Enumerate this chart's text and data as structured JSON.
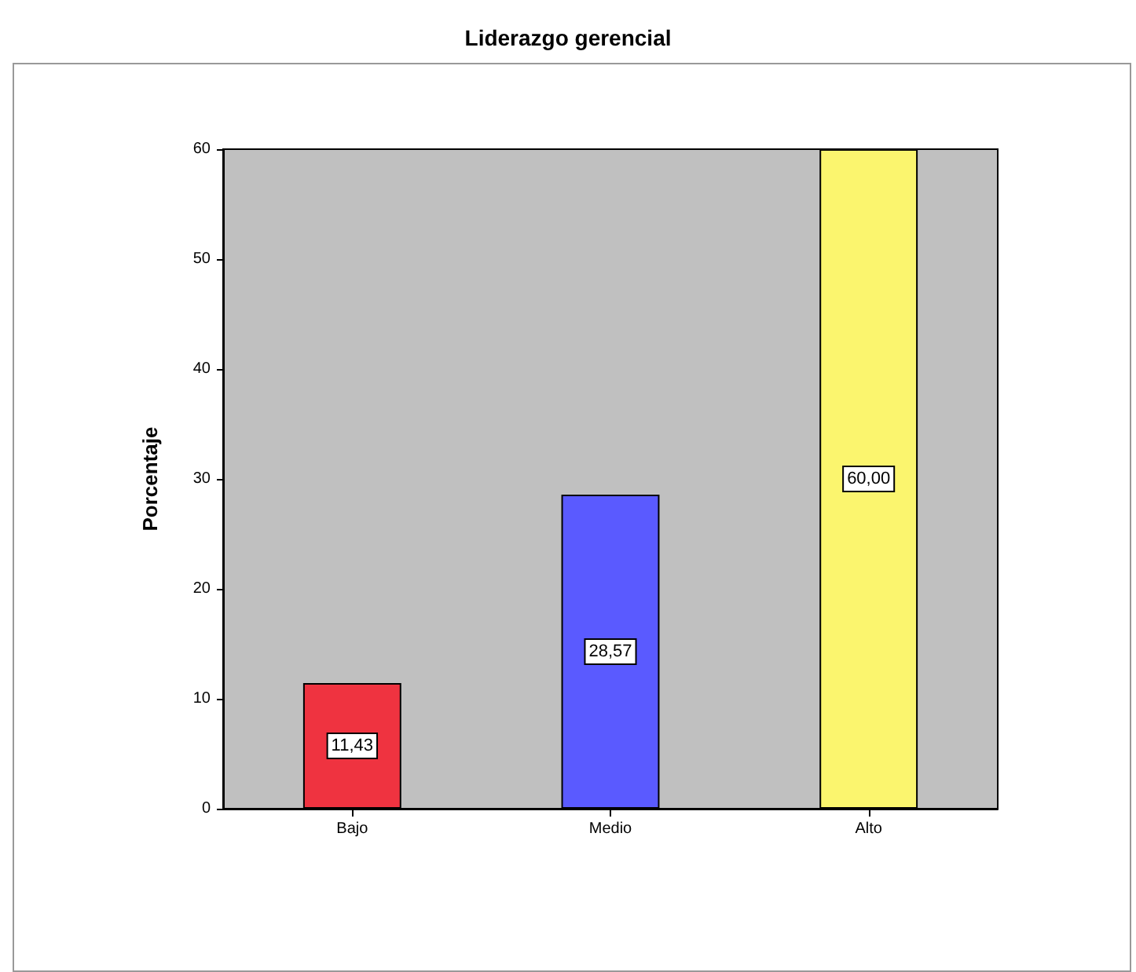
{
  "chart_data": {
    "type": "bar",
    "title": "Liderazgo gerencial",
    "ylabel": "Porcentaje",
    "categories": [
      "Bajo",
      "Medio",
      "Alto"
    ],
    "values": [
      11.43,
      28.57,
      60.0
    ],
    "colors": [
      "#ef3340",
      "#5a5aff",
      "#fbf56e"
    ],
    "value_labels": [
      "11,43",
      "28,57",
      "60,00"
    ],
    "ylim": [
      0,
      60
    ],
    "yticks": [
      0,
      10,
      20,
      30,
      40,
      50,
      60
    ],
    "grid": false
  }
}
